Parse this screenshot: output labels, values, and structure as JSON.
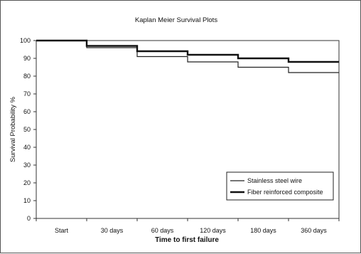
{
  "chart_data": {
    "type": "line",
    "step": true,
    "title": "Kaplan Meier Survival Plots",
    "xlabel": "Time to first failure",
    "ylabel": "Survival Probability %",
    "categories": [
      "Start",
      "30 days",
      "60 days",
      "120 days",
      "180 days",
      "360 days"
    ],
    "ylim": [
      0,
      100
    ],
    "yticks": [
      0,
      10,
      20,
      30,
      40,
      50,
      60,
      70,
      80,
      90,
      100
    ],
    "grid": false,
    "legend_position": "bottom-right",
    "series": [
      {
        "name": "Stainless steel wire",
        "values": [
          100,
          96,
          91,
          88,
          85,
          82
        ],
        "color": "#222222",
        "width": 1.2
      },
      {
        "name": "Fiber reinforced composite",
        "values": [
          100,
          97,
          94,
          92,
          90,
          88
        ],
        "color": "#111111",
        "width": 2.4
      }
    ]
  }
}
